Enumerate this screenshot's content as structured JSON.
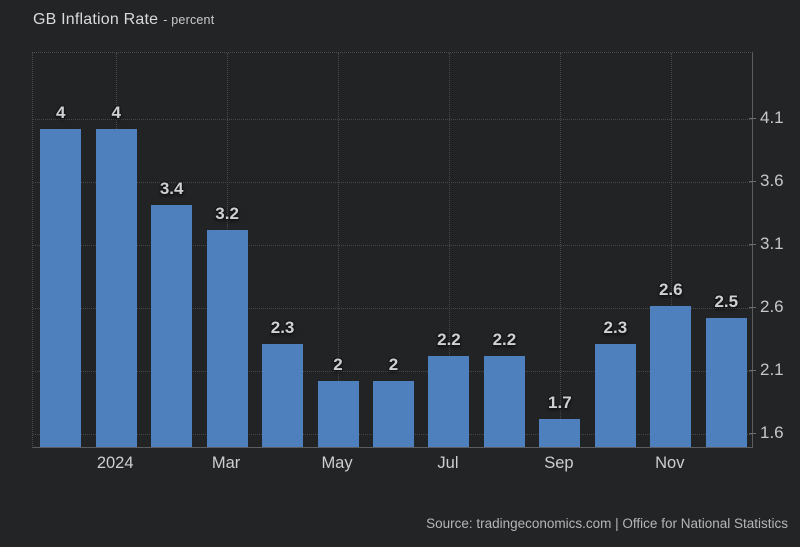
{
  "header": {
    "title": "GB Inflation Rate",
    "subtitle": "- percent"
  },
  "footer": {
    "source": "Source: tradingeconomics.com | Office for National Statistics"
  },
  "colors": {
    "background": "#222426",
    "plot_background": "#212325",
    "bar": "#4d80bc",
    "grid": "#47494b",
    "axis_line": "#5b5d60",
    "value_label": "#cfd0d1",
    "tick_label": "#c6c7c8",
    "title_text": "#d9dadb",
    "source_text": "#b5b6b8"
  },
  "chart_data": {
    "type": "bar",
    "title": "GB Inflation Rate",
    "subtitle_unit": "percent",
    "values": [
      4,
      4,
      3.4,
      3.2,
      2.3,
      2,
      2,
      2.2,
      2.2,
      1.7,
      2.3,
      2.6,
      2.5
    ],
    "bar_labels": [
      "4",
      "4",
      "3.4",
      "3.2",
      "2.3",
      "2",
      "2",
      "2.2",
      "2.2",
      "1.7",
      "2.3",
      "2.6",
      "2.5"
    ],
    "x_ticks": [
      {
        "label": "2024",
        "slot": 1
      },
      {
        "label": "Mar",
        "slot": 3
      },
      {
        "label": "May",
        "slot": 5
      },
      {
        "label": "Jul",
        "slot": 7
      },
      {
        "label": "Sep",
        "slot": 9
      },
      {
        "label": "Nov",
        "slot": 11
      }
    ],
    "y_ticks": [
      4.1,
      3.6,
      3.1,
      2.6,
      2.1,
      1.6
    ],
    "ylim": [
      1.48,
      4.62
    ],
    "grid": "dotted",
    "legend": "none",
    "y_axis_position": "right"
  }
}
